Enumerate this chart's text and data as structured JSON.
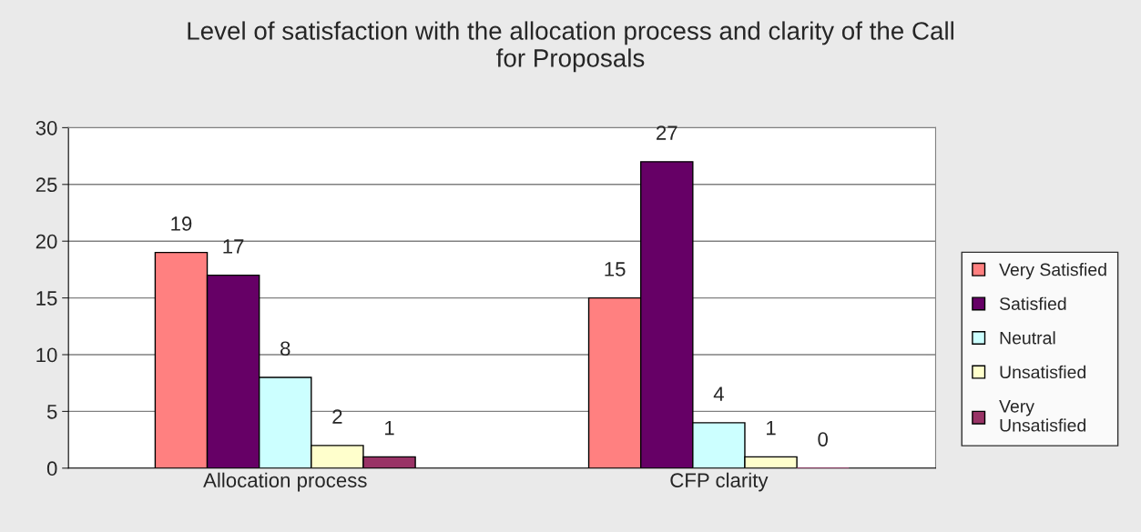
{
  "chart_data": {
    "type": "bar",
    "title": "Level of satisfaction with the allocation process and clarity of the Call\nfor Proposals",
    "categories": [
      "Allocation process",
      "CFP clarity"
    ],
    "series": [
      {
        "name": "Very Satisfied",
        "color": "#ff8080",
        "values": [
          19,
          15
        ]
      },
      {
        "name": "Satisfied",
        "color": "#660066",
        "values": [
          17,
          27
        ]
      },
      {
        "name": "Neutral",
        "color": "#ccffff",
        "values": [
          8,
          4
        ]
      },
      {
        "name": "Unsatisfied",
        "color": "#ffffcc",
        "values": [
          2,
          1
        ]
      },
      {
        "name": "Very\nUnsatisfied",
        "color": "#993366",
        "values": [
          1,
          0
        ]
      }
    ],
    "ylim": [
      0,
      30
    ],
    "yticks": [
      0,
      5,
      10,
      15,
      20,
      25,
      30
    ],
    "grid": "y",
    "legend": "right",
    "data_labels": true
  }
}
